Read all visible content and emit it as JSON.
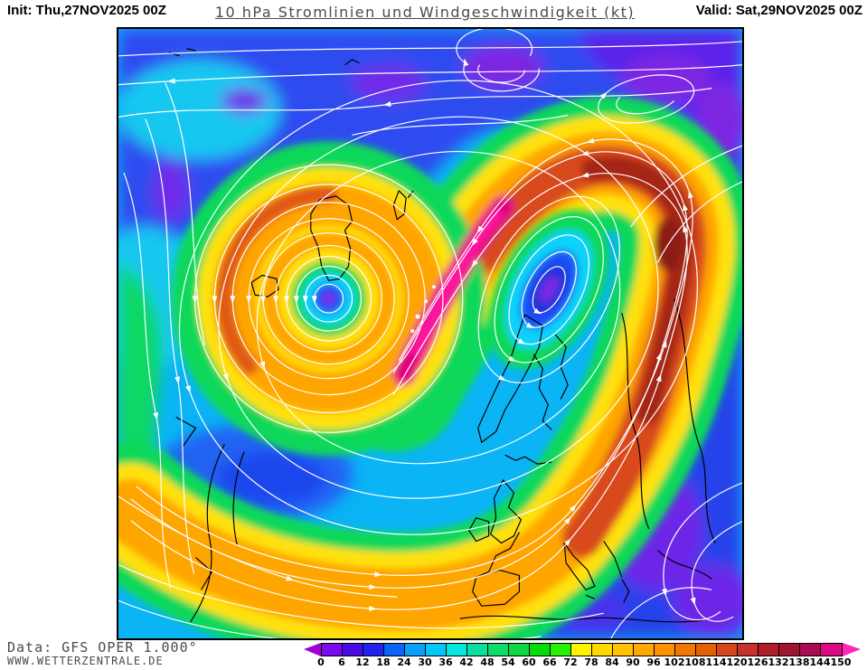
{
  "header": {
    "init_label": "Init: Thu,27NOV2025 00Z",
    "title": "10 hPa Stromlinien und Windgeschwindigkeit (kt)",
    "valid_label": "Valid: Sat,29NOV2025 00Z"
  },
  "footer": {
    "data_source": "Data: GFS OPER 1.000°",
    "website": "WWW.WETTERZENTRALE.DE"
  },
  "legend": {
    "unit": "kt",
    "tick_values": [
      0,
      6,
      12,
      18,
      24,
      30,
      36,
      42,
      48,
      54,
      60,
      66,
      72,
      78,
      84,
      90,
      96,
      102,
      108,
      114,
      120,
      126,
      132,
      138,
      144,
      150
    ],
    "segment_colors": [
      "#7a0af0",
      "#4b0ae8",
      "#2222f0",
      "#0a64fa",
      "#0aa0fa",
      "#00c8fa",
      "#05e6dc",
      "#0ade9e",
      "#0eda6e",
      "#0ed741",
      "#05dc0a",
      "#28f000",
      "#fff500",
      "#ffd800",
      "#ffc300",
      "#ffa800",
      "#ff9000",
      "#f07800",
      "#e66000",
      "#d8461e",
      "#c83228",
      "#b01e28",
      "#a01432",
      "#aa0a50",
      "#dc0a82"
    ],
    "underflow_color": "#a000d2",
    "overflow_color": "#ff28b4"
  }
}
